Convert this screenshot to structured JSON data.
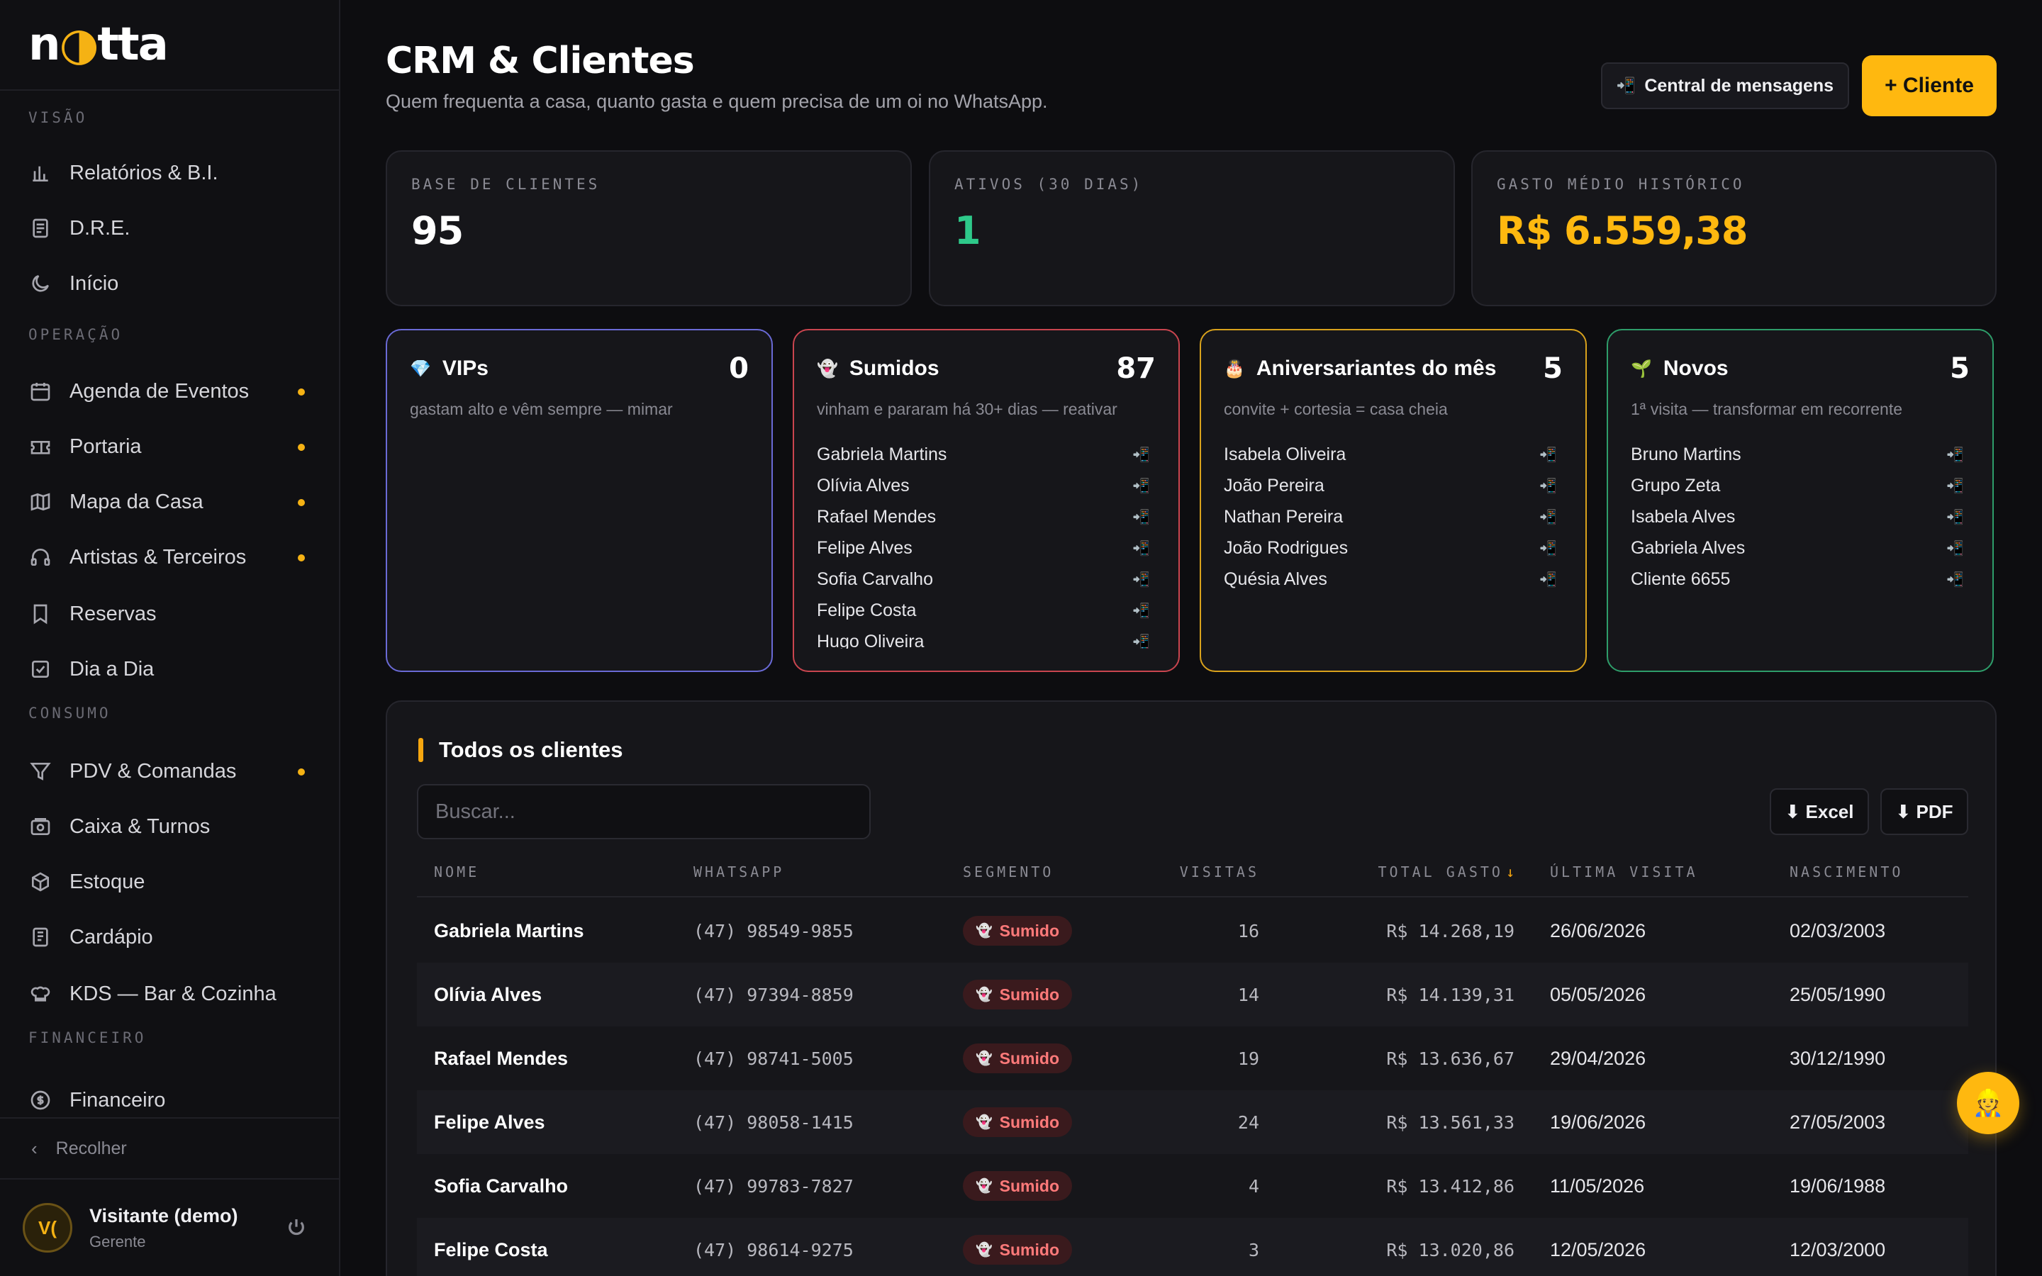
{
  "brand": {
    "logo_pre": "n",
    "logo_moon": "◑",
    "logo_post": "tta",
    "accent": "#f5b214"
  },
  "sidebar": {
    "sections": [
      "VISÃO",
      "OPERAÇÃO",
      "CONSUMO",
      "FINANCEIRO"
    ],
    "items": [
      {
        "label": "Relatórios & B.I.",
        "icon": "bar-chart-icon",
        "dot": false
      },
      {
        "label": "D.R.E.",
        "icon": "document-icon",
        "dot": false
      },
      {
        "label": "Início",
        "icon": "moon-icon",
        "dot": false
      },
      {
        "label": "Agenda de Eventos",
        "icon": "calendar-icon",
        "dot": true
      },
      {
        "label": "Portaria",
        "icon": "ticket-icon",
        "dot": true
      },
      {
        "label": "Mapa da Casa",
        "icon": "map-icon",
        "dot": true
      },
      {
        "label": "Artistas & Terceiros",
        "icon": "headphones-icon",
        "dot": true
      },
      {
        "label": "Reservas",
        "icon": "bookmark-icon",
        "dot": false
      },
      {
        "label": "Dia a Dia",
        "icon": "checkbox-icon",
        "dot": false
      },
      {
        "label": "PDV & Comandas",
        "icon": "filter-icon",
        "dot": true
      },
      {
        "label": "Caixa & Turnos",
        "icon": "cash-register-icon",
        "dot": false
      },
      {
        "label": "Estoque",
        "icon": "box-icon",
        "dot": false
      },
      {
        "label": "Cardápio",
        "icon": "menu-book-icon",
        "dot": false
      },
      {
        "label": "KDS — Bar & Cozinha",
        "icon": "chef-hat-icon",
        "dot": false
      },
      {
        "label": "Financeiro",
        "icon": "dollar-circle-icon",
        "dot": false
      }
    ],
    "collapse_label": "Recolher",
    "user": {
      "initials": "V(",
      "name": "Visitante (demo)",
      "role": "Gerente"
    }
  },
  "header": {
    "title": "CRM & Clientes",
    "subtitle": "Quem frequenta a casa, quanto gasta e quem precisa de um oi no WhatsApp.",
    "messages_button": "Central de mensagens",
    "messages_icon": "📲",
    "new_client_button": "+ Cliente"
  },
  "stats": [
    {
      "label": "BASE DE CLIENTES",
      "value": "95",
      "color": "#ffffff"
    },
    {
      "label": "ATIVOS (30 DIAS)",
      "value": "1",
      "color": "#2ec98a"
    },
    {
      "label": "GASTO MÉDIO HISTÓRICO",
      "value": "R$ 6.559,38",
      "color": "#ffb80f"
    }
  ],
  "segments": [
    {
      "emoji": "💎",
      "title": "VIPs",
      "count": "0",
      "desc": "gastam alto e vêm sempre — mimar",
      "border": "#6a6ad6",
      "clients": []
    },
    {
      "emoji": "👻",
      "title": "Sumidos",
      "count": "87",
      "desc": "vinham e pararam há 30+ dias — reativar",
      "border": "#c9454f",
      "clients": [
        "Gabriela Martins",
        "Olívia Alves",
        "Rafael Mendes",
        "Felipe Alves",
        "Sofia Carvalho",
        "Felipe Costa",
        "Hugo Oliveira"
      ]
    },
    {
      "emoji": "🎂",
      "title": "Aniversariantes do mês",
      "count": "5",
      "desc": "convite + cortesia = casa cheia",
      "border": "#d9a21c",
      "clients": [
        "Isabela Oliveira",
        "João Pereira",
        "Nathan Pereira",
        "João Rodrigues",
        "Quésia Alves"
      ]
    },
    {
      "emoji": "🌱",
      "title": "Novos",
      "count": "5",
      "desc": "1ª visita — transformar em recorrente",
      "border": "#2e9d6a",
      "clients": [
        "Bruno Martins",
        "Grupo Zeta",
        "Isabela Alves",
        "Gabriela Alves",
        "Cliente 6655"
      ]
    }
  ],
  "whatsapp_icon": "📲",
  "table": {
    "title": "Todos os clientes",
    "search_placeholder": "Buscar...",
    "export_excel": "⬇ Excel",
    "export_pdf": "⬇ PDF",
    "headers": [
      "NOME",
      "WHATSAPP",
      "SEGMENTO",
      "VISITAS",
      "TOTAL GASTO",
      "ÚLTIMA VISITA",
      "NASCIMENTO"
    ],
    "sort_arrow": "↓",
    "segment_emoji": "👻",
    "rows": [
      {
        "nome": "Gabriela Martins",
        "whatsapp": "(47) 98549-9855",
        "segmento": "Sumido",
        "visitas": "16",
        "total": "R$ 14.268,19",
        "ultima": "26/06/2026",
        "nascimento": "02/03/2003"
      },
      {
        "nome": "Olívia Alves",
        "whatsapp": "(47) 97394-8859",
        "segmento": "Sumido",
        "visitas": "14",
        "total": "R$ 14.139,31",
        "ultima": "05/05/2026",
        "nascimento": "25/05/1990"
      },
      {
        "nome": "Rafael Mendes",
        "whatsapp": "(47) 98741-5005",
        "segmento": "Sumido",
        "visitas": "19",
        "total": "R$ 13.636,67",
        "ultima": "29/04/2026",
        "nascimento": "30/12/1990"
      },
      {
        "nome": "Felipe Alves",
        "whatsapp": "(47) 98058-1415",
        "segmento": "Sumido",
        "visitas": "24",
        "total": "R$ 13.561,33",
        "ultima": "19/06/2026",
        "nascimento": "27/05/2003"
      },
      {
        "nome": "Sofia Carvalho",
        "whatsapp": "(47) 99783-7827",
        "segmento": "Sumido",
        "visitas": "4",
        "total": "R$ 13.412,86",
        "ultima": "11/05/2026",
        "nascimento": "19/06/1988"
      },
      {
        "nome": "Felipe Costa",
        "whatsapp": "(47) 98614-9275",
        "segmento": "Sumido",
        "visitas": "3",
        "total": "R$ 13.020,86",
        "ultima": "12/05/2026",
        "nascimento": "12/03/2000"
      }
    ]
  },
  "assistant": {
    "emoji": "👷"
  }
}
